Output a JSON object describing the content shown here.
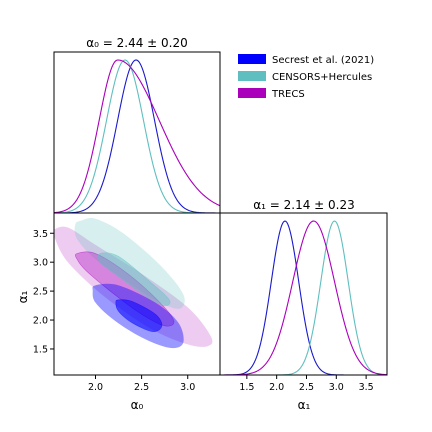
{
  "chart_data": {
    "type": "corner",
    "legend": {
      "placement": "upper-right",
      "entries": [
        {
          "label": "Secrest et al. (2021)",
          "color": "#0000ff"
        },
        {
          "label": "CENSORS+Hercules",
          "color": "#5fbfc0"
        },
        {
          "label": "TRECS",
          "color": "#aa00bb"
        }
      ]
    },
    "panels": {
      "alpha0_marginal": {
        "type": "line",
        "title": "α₀ = 2.44 ± 0.20",
        "xlim": [
          1.55,
          3.35
        ],
        "series": [
          {
            "name": "Secrest et al. (2021)",
            "color": "#1a1acc",
            "mean": 2.44,
            "sd": 0.2
          },
          {
            "name": "CENSORS+Hercules",
            "color": "#5fbfc0",
            "mean": 2.32,
            "sd": 0.2
          },
          {
            "name": "TRECS",
            "color": "#aa00bb",
            "mode": 2.24,
            "sd_left": 0.2,
            "sd_right": 0.45
          }
        ]
      },
      "alpha1_marginal": {
        "type": "line",
        "title": "α₁ = 2.14 ± 0.23",
        "xlabel": "α₁",
        "xlim": [
          1.05,
          3.85
        ],
        "xticks": [
          "1.5",
          "2.0",
          "2.5",
          "3.0",
          "3.5"
        ],
        "xtick_values": [
          1.5,
          2.0,
          2.5,
          3.0,
          3.5
        ],
        "series": [
          {
            "name": "Secrest et al. (2021)",
            "color": "#1a1acc",
            "mean": 2.14,
            "sd": 0.23
          },
          {
            "name": "CENSORS+Hercules",
            "color": "#5fbfc0",
            "mean": 2.97,
            "sd": 0.23
          },
          {
            "name": "TRECS",
            "color": "#aa00bb",
            "mean": 2.62,
            "sd": 0.35
          }
        ]
      },
      "joint": {
        "type": "contour",
        "xlabel": "α₀",
        "ylabel": "α₁",
        "xlim": [
          1.55,
          3.35
        ],
        "ylim": [
          1.05,
          3.85
        ],
        "xticks": [
          "2.0",
          "2.5",
          "3.0"
        ],
        "xtick_values": [
          2.0,
          2.5,
          3.0
        ],
        "yticks": [
          "1.5",
          "2.0",
          "2.5",
          "3.0",
          "3.5"
        ],
        "ytick_values": [
          1.5,
          2.0,
          2.5,
          3.0,
          3.5
        ],
        "regions": [
          {
            "name": "TRECS",
            "level": "outer",
            "color": "#aa00bb",
            "opacity": 0.2,
            "points": [
              [
                1.55,
                3.56
              ],
              [
                1.7,
                3.6
              ],
              [
                2.0,
                3.3
              ],
              [
                2.5,
                2.8
              ],
              [
                3.0,
                2.22
              ],
              [
                3.25,
                1.72
              ],
              [
                3.22,
                1.55
              ],
              [
                3.0,
                1.58
              ],
              [
                2.6,
                1.85
              ],
              [
                2.1,
                2.4
              ],
              [
                1.7,
                3.0
              ],
              [
                1.55,
                3.45
              ]
            ]
          },
          {
            "name": "CENSORS+Hercules",
            "level": "outer",
            "color": "#5fbfc0",
            "opacity": 0.25,
            "points": [
              [
                1.85,
                3.72
              ],
              [
                2.0,
                3.75
              ],
              [
                2.3,
                3.5
              ],
              [
                2.7,
                2.95
              ],
              [
                2.95,
                2.45
              ],
              [
                2.92,
                2.2
              ],
              [
                2.7,
                2.3
              ],
              [
                2.35,
                2.65
              ],
              [
                2.0,
                3.05
              ],
              [
                1.8,
                3.4
              ],
              [
                1.78,
                3.65
              ]
            ]
          },
          {
            "name": "TRECS",
            "level": "inner",
            "color": "#aa00bb",
            "opacity": 0.35,
            "points": [
              [
                1.8,
                3.15
              ],
              [
                2.0,
                3.15
              ],
              [
                2.35,
                2.8
              ],
              [
                2.7,
                2.3
              ],
              [
                2.85,
                1.98
              ],
              [
                2.75,
                1.9
              ],
              [
                2.5,
                2.1
              ],
              [
                2.2,
                2.45
              ],
              [
                1.9,
                2.85
              ],
              [
                1.8,
                3.05
              ]
            ]
          },
          {
            "name": "CENSORS+Hercules",
            "level": "inner",
            "color": "#5fbfc0",
            "opacity": 0.45,
            "points": [
              [
                2.05,
                3.15
              ],
              [
                2.25,
                3.1
              ],
              [
                2.6,
                2.65
              ],
              [
                2.8,
                2.35
              ],
              [
                2.75,
                2.25
              ],
              [
                2.55,
                2.4
              ],
              [
                2.25,
                2.75
              ],
              [
                2.05,
                3.0
              ]
            ]
          },
          {
            "name": "Secrest et al. (2021)",
            "level": "outer",
            "color": "#0000ff",
            "opacity": 0.4,
            "points": [
              [
                2.0,
                2.6
              ],
              [
                2.25,
                2.6
              ],
              [
                2.65,
                2.3
              ],
              [
                2.9,
                1.95
              ],
              [
                2.95,
                1.6
              ],
              [
                2.8,
                1.52
              ],
              [
                2.5,
                1.7
              ],
              [
                2.2,
                2.0
              ],
              [
                2.0,
                2.3
              ],
              [
                1.97,
                2.5
              ]
            ]
          },
          {
            "name": "Secrest et al. (2021)",
            "level": "inner",
            "color": "#0000ff",
            "opacity": 0.55,
            "points": [
              [
                2.25,
                2.35
              ],
              [
                2.4,
                2.32
              ],
              [
                2.65,
                2.1
              ],
              [
                2.72,
                1.9
              ],
              [
                2.62,
                1.8
              ],
              [
                2.4,
                1.95
              ],
              [
                2.25,
                2.15
              ],
              [
                2.22,
                2.3
              ]
            ]
          }
        ]
      }
    }
  }
}
